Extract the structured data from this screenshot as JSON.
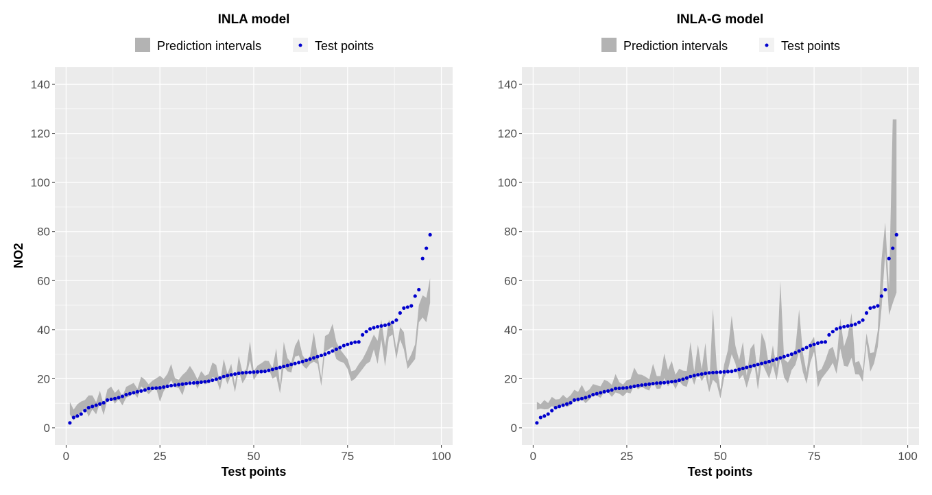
{
  "legend": {
    "band_label": "Prediction intervals",
    "points_label": "Test points"
  },
  "colors": {
    "panel_bg": "#ebebeb",
    "grid_major": "#ffffff",
    "band": "#b3b3b3",
    "points": "#0000cd",
    "tick_text": "#4d4d4d"
  },
  "chart_data": [
    {
      "type": "area",
      "title": "INLA model",
      "xlabel": "Test points",
      "ylabel": "NO2",
      "xlim": [
        -3,
        103
      ],
      "ylim": [
        -7,
        147
      ],
      "x_ticks": [
        0,
        25,
        50,
        75,
        100
      ],
      "y_ticks": [
        0,
        20,
        40,
        60,
        80,
        100,
        120,
        140
      ],
      "grid": true,
      "legend_position": "top",
      "test_points": [
        2.0,
        4.2,
        4.8,
        5.6,
        7.0,
        8.2,
        8.7,
        9.2,
        9.7,
        10.2,
        11.3,
        11.6,
        11.9,
        12.3,
        12.8,
        13.5,
        13.9,
        14.3,
        14.7,
        15.0,
        15.4,
        16.0,
        16.1,
        16.2,
        16.3,
        16.6,
        16.9,
        17.2,
        17.4,
        17.6,
        17.8,
        18.0,
        18.2,
        18.3,
        18.4,
        18.6,
        18.8,
        19.0,
        19.4,
        19.8,
        20.3,
        20.9,
        21.3,
        21.6,
        21.9,
        22.2,
        22.4,
        22.5,
        22.6,
        22.7,
        22.8,
        22.9,
        23.0,
        23.4,
        23.8,
        24.2,
        24.6,
        25.0,
        25.4,
        25.8,
        26.2,
        26.6,
        27.0,
        27.5,
        28.0,
        28.5,
        29.0,
        29.5,
        30.0,
        30.6,
        31.3,
        32.0,
        32.7,
        33.5,
        34.0,
        34.5,
        34.9,
        35.0,
        37.9,
        39.2,
        40.3,
        40.8,
        41.2,
        41.5,
        41.8,
        42.2,
        43.0,
        43.9,
        46.8,
        48.8,
        49.2,
        49.7,
        53.7,
        56.3,
        69.0,
        73.2,
        78.7
      ],
      "interval_lower": [
        5.5,
        3.0,
        5.3,
        6.1,
        8.2,
        4.5,
        7.5,
        5.5,
        10.1,
        5.2,
        11.6,
        12.4,
        9.8,
        11.7,
        9.1,
        12.3,
        13.0,
        14.3,
        12.2,
        16.9,
        15.4,
        13.7,
        15.3,
        16.1,
        10.6,
        14.9,
        17.1,
        19.3,
        16.6,
        16.2,
        13.3,
        18.2,
        18.8,
        19.3,
        15.9,
        19.3,
        17.7,
        18.3,
        20.7,
        20.0,
        15.3,
        22.1,
        17.7,
        21.7,
        14.5,
        23.4,
        18.1,
        20.7,
        27.5,
        19.5,
        21.8,
        23.1,
        23.4,
        24.0,
        20.0,
        21.0,
        14.0,
        25.0,
        23.0,
        22.5,
        29.0,
        29.5,
        25.5,
        24.0,
        26.0,
        27.0,
        26.0,
        17.0,
        31.0,
        32.0,
        33.0,
        28.0,
        27.0,
        26.5,
        24.0,
        19.0,
        20.0,
        22.0,
        24.0,
        26.0,
        27.0,
        32.0,
        26.0,
        36.0,
        25.0,
        37.0,
        38.0,
        28.0,
        36.0,
        32.0,
        24.0,
        26.0,
        28.0,
        43.0,
        45.0,
        43.0,
        51.0
      ],
      "interval_upper": [
        10.5,
        7.4,
        9.6,
        10.7,
        11.3,
        13.2,
        13.2,
        10.4,
        15.1,
        9.4,
        15.6,
        16.8,
        14.2,
        15.8,
        12.7,
        16.7,
        17.5,
        18.3,
        15.9,
        20.8,
        19.6,
        17.7,
        19.2,
        20.1,
        21.2,
        19.9,
        22.0,
        26.0,
        20.2,
        19.6,
        21.5,
        22.9,
        25.2,
        22.8,
        19.7,
        23.1,
        21.2,
        21.9,
        26.6,
        25.6,
        18.2,
        28.0,
        22.0,
        26.1,
        17.5,
        29.3,
        22.6,
        23.9,
        35.2,
        23.1,
        25.3,
        26.3,
        27.4,
        27.2,
        24.2,
        32.4,
        17.1,
        35.0,
        28.4,
        26.4,
        33.4,
        36.2,
        29.6,
        27.3,
        29.3,
        38.9,
        29.6,
        20.2,
        37.4,
        38.3,
        42.4,
        35.0,
        32.0,
        30.0,
        28.0,
        23.0,
        23.5,
        26.0,
        28.0,
        31.0,
        34.5,
        38.0,
        35.5,
        44.0,
        33.0,
        44.0,
        42.0,
        32.0,
        41.0,
        39.0,
        27.0,
        30.0,
        34.0,
        50.0,
        54.0,
        53.0,
        61.0
      ]
    },
    {
      "type": "area",
      "title": "INLA-G model",
      "xlabel": "Test points",
      "ylabel": "",
      "xlim": [
        -3,
        103
      ],
      "ylim": [
        -7,
        147
      ],
      "x_ticks": [
        0,
        25,
        50,
        75,
        100
      ],
      "y_ticks": [
        0,
        20,
        40,
        60,
        80,
        100,
        120,
        140
      ],
      "grid": true,
      "legend_position": "top",
      "test_points": [
        2.0,
        4.2,
        4.8,
        5.6,
        7.0,
        8.2,
        8.7,
        9.2,
        9.7,
        10.2,
        11.3,
        11.6,
        11.9,
        12.3,
        12.8,
        13.5,
        13.9,
        14.3,
        14.7,
        15.0,
        15.4,
        16.0,
        16.1,
        16.2,
        16.3,
        16.6,
        16.9,
        17.2,
        17.4,
        17.6,
        17.8,
        18.0,
        18.2,
        18.3,
        18.4,
        18.6,
        18.8,
        19.0,
        19.4,
        19.8,
        20.3,
        20.9,
        21.3,
        21.6,
        21.9,
        22.2,
        22.4,
        22.5,
        22.6,
        22.7,
        22.8,
        22.9,
        23.0,
        23.4,
        23.8,
        24.2,
        24.6,
        25.0,
        25.4,
        25.8,
        26.2,
        26.6,
        27.0,
        27.5,
        28.0,
        28.5,
        29.0,
        29.5,
        30.0,
        30.6,
        31.3,
        32.0,
        32.7,
        33.5,
        34.0,
        34.5,
        34.9,
        35.0,
        37.9,
        39.2,
        40.3,
        40.8,
        41.2,
        41.5,
        41.8,
        42.2,
        43.0,
        43.9,
        46.8,
        48.8,
        49.2,
        49.7,
        53.7,
        56.3,
        69.0,
        73.2,
        78.7
      ],
      "interval_lower": [
        7.4,
        7.8,
        7.5,
        7.6,
        8.8,
        8.1,
        8.3,
        9.9,
        8.4,
        9.3,
        11.4,
        10.4,
        11.8,
        10.0,
        11.5,
        13.3,
        13.1,
        12.2,
        14.7,
        14.5,
        12.6,
        14.4,
        13.9,
        12.8,
        14.4,
        14.0,
        17.4,
        15.7,
        16.7,
        15.8,
        15.2,
        18.8,
        15.9,
        16.0,
        20.2,
        16.9,
        19.1,
        15.8,
        19.0,
        17.2,
        16.7,
        22.0,
        17.5,
        22.5,
        19.0,
        21.5,
        14.5,
        19.6,
        18.0,
        11.9,
        20.5,
        23.5,
        30.0,
        26.2,
        19.7,
        21.6,
        16.3,
        21.8,
        26.6,
        15.5,
        26.8,
        23.4,
        20.0,
        25.5,
        19.4,
        28.6,
        20.5,
        18.2,
        23.5,
        25.6,
        31.0,
        22.8,
        17.9,
        26.6,
        31.0,
        16.4,
        20.0,
        22.0,
        24.0,
        26.5,
        22.0,
        32.3,
        25.2,
        24.9,
        28.6,
        21.8,
        21.7,
        18.7,
        34.3,
        22.9,
        26.2,
        33.0,
        48.6,
        71.7,
        45.9,
        50.8,
        55.1
      ],
      "interval_upper": [
        10.6,
        9.6,
        11.3,
        10.1,
        12.6,
        11.5,
        11.7,
        13.4,
        12.0,
        13.3,
        15.5,
        14.6,
        17.5,
        14.6,
        15.6,
        17.8,
        17.3,
        16.9,
        19.6,
        18.9,
        17.5,
        21.9,
        18.6,
        17.6,
        19.4,
        19.8,
        24.5,
        21.8,
        21.6,
        20.8,
        19.8,
        26.1,
        21.1,
        21.1,
        30.3,
        23.5,
        27.2,
        21.6,
        24.1,
        23.3,
        23.1,
        35.0,
        22.8,
        33.9,
        23.8,
        34.6,
        17.1,
        48.5,
        25.0,
        15.5,
        25.8,
        31.7,
        45.7,
        33.4,
        27.6,
        35.0,
        21.3,
        32.2,
        34.4,
        20.9,
        38.7,
        34.6,
        24.7,
        33.6,
        24.3,
        59.8,
        27.9,
        26.6,
        28.9,
        32.2,
        48.2,
        30.6,
        22.5,
        34.6,
        37.1,
        23.0,
        24.0,
        27.5,
        32.0,
        33.0,
        27.6,
        44.6,
        33.1,
        37.7,
        46.8,
        26.6,
        27.2,
        23.2,
        38.5,
        30.4,
        30.8,
        39.6,
        68.5,
        83.7,
        56.4,
        125.7,
        125.7
      ]
    }
  ]
}
